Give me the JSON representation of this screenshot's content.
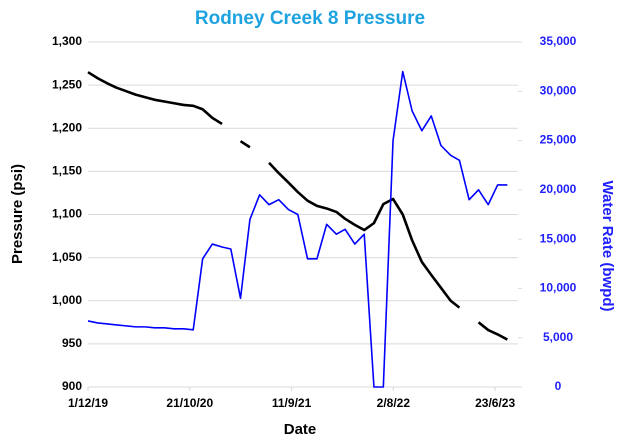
{
  "chart_data": {
    "type": "line",
    "title": "Rodney Creek 8 Pressure",
    "x_label": "Date",
    "y_label": "Pressure (psi)",
    "y2_label": "Water Rate (bwpd)",
    "x": [
      "2019-12-01",
      "2020-01-01",
      "2020-02-01",
      "2020-03-01",
      "2020-04-01",
      "2020-05-01",
      "2020-06-01",
      "2020-07-01",
      "2020-08-01",
      "2020-09-01",
      "2020-10-01",
      "2020-11-01",
      "2020-12-01",
      "2021-01-01",
      "2021-02-01",
      "2021-03-01",
      "2021-04-01",
      "2021-05-01",
      "2021-06-01",
      "2021-07-01",
      "2021-08-01",
      "2021-09-01",
      "2021-10-01",
      "2021-11-01",
      "2021-12-01",
      "2022-01-01",
      "2022-02-01",
      "2022-03-01",
      "2022-04-01",
      "2022-05-01",
      "2022-06-01",
      "2022-07-01",
      "2022-08-01",
      "2022-09-01",
      "2022-10-01",
      "2022-11-01",
      "2022-12-01",
      "2023-01-01",
      "2023-02-01",
      "2023-03-01",
      "2023-04-01",
      "2023-05-01",
      "2023-06-01",
      "2023-07-01",
      "2023-08-01"
    ],
    "series": [
      {
        "name": "Pressure",
        "color": "#000000",
        "axis": "y",
        "values": [
          1265,
          1258,
          1252,
          1247,
          1243,
          1239,
          1236,
          1233,
          1231,
          1229,
          1227,
          1226,
          1222,
          1212,
          1205,
          null,
          1185,
          1178,
          null,
          1160,
          1148,
          1137,
          1126,
          1116,
          1110,
          1107,
          1103,
          1095,
          1088,
          1082,
          1090,
          1112,
          1118,
          1100,
          1070,
          1045,
          1030,
          1015,
          1000,
          992,
          null,
          975,
          966,
          961,
          955
        ]
      },
      {
        "name": "Water Rate",
        "color": "#0000ff",
        "axis": "y2",
        "values": [
          6700,
          6500,
          6400,
          6300,
          6200,
          6100,
          6100,
          6000,
          6000,
          5900,
          5900,
          5800,
          13000,
          14500,
          14200,
          14000,
          9000,
          17000,
          19500,
          18500,
          19000,
          18000,
          17500,
          13000,
          13000,
          16500,
          15500,
          16000,
          14500,
          15500,
          0,
          0,
          25000,
          32000,
          28000,
          26000,
          27500,
          24500,
          23500,
          23000,
          19000,
          20000,
          18500,
          20500,
          20500
        ]
      }
    ],
    "xlim": [
      "2019-12-01",
      "2023-09-04"
    ],
    "xticks": [
      {
        "value": "2019-12-01",
        "label": "1/12/19"
      },
      {
        "value": "2020-10-21",
        "label": "21/10/20"
      },
      {
        "value": "2021-09-11",
        "label": "11/9/21"
      },
      {
        "value": "2022-08-02",
        "label": "2/8/22"
      },
      {
        "value": "2023-06-23",
        "label": "23/6/23"
      }
    ],
    "ylim": [
      900,
      1300
    ],
    "yticks": [
      900,
      950,
      {
        "value": 1000,
        "label": "1,000"
      },
      {
        "value": 1050,
        "label": "1,050"
      },
      {
        "value": 1100,
        "label": "1,100"
      },
      {
        "value": 1150,
        "label": "1,150"
      },
      {
        "value": 1200,
        "label": "1,200"
      },
      {
        "value": 1250,
        "label": "1,250"
      },
      {
        "value": 1300,
        "label": "1,300"
      }
    ],
    "y2lim": [
      0,
      35000
    ],
    "y2ticks": [
      0,
      {
        "value": 5000,
        "label": "5,000"
      },
      {
        "value": 10000,
        "label": "10,000"
      },
      {
        "value": 15000,
        "label": "15,000"
      },
      {
        "value": 20000,
        "label": "20,000"
      },
      {
        "value": 25000,
        "label": "25,000"
      },
      {
        "value": 30000,
        "label": "30,000"
      },
      {
        "value": 35000,
        "label": "35,000"
      }
    ],
    "grid": true
  }
}
